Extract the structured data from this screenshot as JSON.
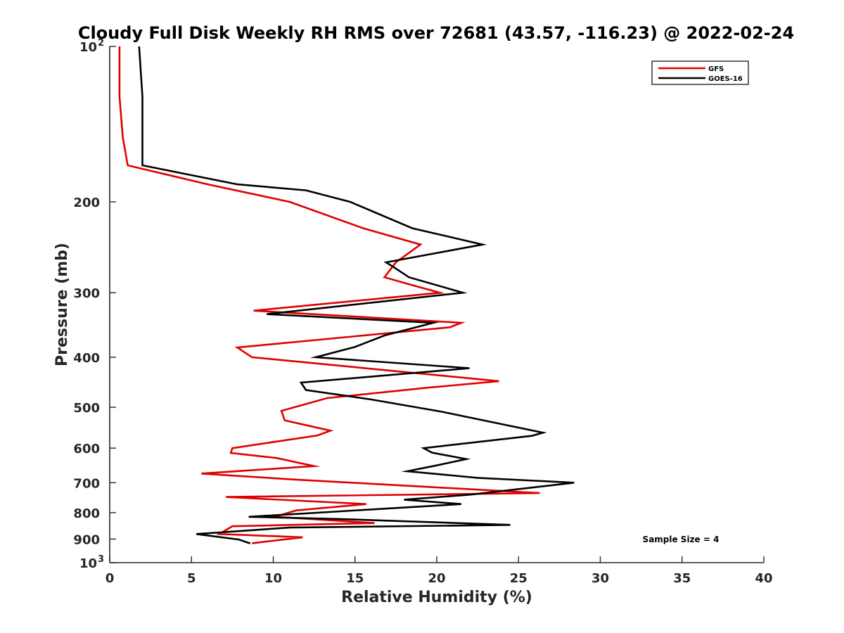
{
  "chart_data": {
    "type": "line",
    "title": "Cloudy Full Disk Weekly RH RMS over 72681 (43.57, -116.23) @ 2022-02-24",
    "xlabel": "Relative Humidity (%)",
    "ylabel": "Pressure (mb)",
    "xlim": [
      0,
      40
    ],
    "ylim": [
      100,
      1000
    ],
    "y_scale": "log",
    "y_reversed": true,
    "grid": false,
    "x_ticks": [
      {
        "value": 0,
        "label": "0"
      },
      {
        "value": 5,
        "label": "5"
      },
      {
        "value": 10,
        "label": "10"
      },
      {
        "value": 15,
        "label": "15"
      },
      {
        "value": 20,
        "label": "20"
      },
      {
        "value": 25,
        "label": "25"
      },
      {
        "value": 30,
        "label": "30"
      },
      {
        "value": 35,
        "label": "35"
      },
      {
        "value": 40,
        "label": "40"
      }
    ],
    "y_ticks": [
      {
        "value": 100,
        "label": "10",
        "sup": "2"
      },
      {
        "value": 200,
        "label": "200",
        "sup": ""
      },
      {
        "value": 300,
        "label": "300",
        "sup": ""
      },
      {
        "value": 400,
        "label": "400",
        "sup": ""
      },
      {
        "value": 500,
        "label": "500",
        "sup": ""
      },
      {
        "value": 600,
        "label": "600",
        "sup": ""
      },
      {
        "value": 700,
        "label": "700",
        "sup": ""
      },
      {
        "value": 800,
        "label": "800",
        "sup": ""
      },
      {
        "value": 900,
        "label": "900",
        "sup": ""
      },
      {
        "value": 1000,
        "label": "10",
        "sup": "3"
      }
    ],
    "legend_position": "top-right",
    "annotation": "Sample Size = 4",
    "series": [
      {
        "name": "GFS",
        "color": "#e00000",
        "points": [
          [
            0.6,
            100
          ],
          [
            0.6,
            125
          ],
          [
            0.8,
            150
          ],
          [
            1.1,
            170
          ],
          [
            6.0,
            185
          ],
          [
            11.0,
            200
          ],
          [
            15.5,
            225
          ],
          [
            19.0,
            242
          ],
          [
            17.5,
            262
          ],
          [
            16.8,
            280
          ],
          [
            18.5,
            290
          ],
          [
            20.2,
            300
          ],
          [
            8.8,
            325
          ],
          [
            21.5,
            343
          ],
          [
            20.8,
            350
          ],
          [
            7.8,
            383
          ],
          [
            8.7,
            400
          ],
          [
            23.8,
            445
          ],
          [
            19.5,
            458
          ],
          [
            13.3,
            480
          ],
          [
            10.5,
            508
          ],
          [
            10.7,
            530
          ],
          [
            13.5,
            555
          ],
          [
            12.7,
            567
          ],
          [
            7.5,
            600
          ],
          [
            7.4,
            613
          ],
          [
            10.2,
            627
          ],
          [
            12.5,
            650
          ],
          [
            5.6,
            672
          ],
          [
            11.2,
            690
          ],
          [
            26.3,
            733
          ],
          [
            7.1,
            746
          ],
          [
            15.7,
            770
          ],
          [
            11.4,
            792
          ],
          [
            10.1,
            815
          ],
          [
            16.2,
            838
          ],
          [
            7.5,
            850
          ],
          [
            6.7,
            880
          ],
          [
            11.8,
            893
          ],
          [
            8.7,
            917
          ]
        ]
      },
      {
        "name": "GOES-16",
        "color": "#000000",
        "points": [
          [
            1.8,
            100
          ],
          [
            2.0,
            125
          ],
          [
            2.0,
            150
          ],
          [
            2.0,
            170
          ],
          [
            7.8,
            185
          ],
          [
            12.0,
            190
          ],
          [
            14.7,
            200
          ],
          [
            18.5,
            225
          ],
          [
            22.8,
            242
          ],
          [
            16.9,
            262
          ],
          [
            17.4,
            268
          ],
          [
            18.3,
            280
          ],
          [
            21.6,
            300
          ],
          [
            9.6,
            330
          ],
          [
            19.8,
            343
          ],
          [
            16.8,
            363
          ],
          [
            15.0,
            382
          ],
          [
            12.6,
            400
          ],
          [
            22.0,
            420
          ],
          [
            11.7,
            448
          ],
          [
            12.0,
            463
          ],
          [
            16.0,
            483
          ],
          [
            20.3,
            510
          ],
          [
            26.5,
            560
          ],
          [
            25.8,
            568
          ],
          [
            19.2,
            600
          ],
          [
            19.7,
            612
          ],
          [
            21.8,
            630
          ],
          [
            20.0,
            648
          ],
          [
            18.2,
            665
          ],
          [
            22.5,
            685
          ],
          [
            28.4,
            700
          ],
          [
            22.1,
            738
          ],
          [
            18.0,
            755
          ],
          [
            21.5,
            770
          ],
          [
            8.5,
            815
          ],
          [
            14.0,
            823
          ],
          [
            24.5,
            845
          ],
          [
            11.0,
            855
          ],
          [
            5.3,
            880
          ],
          [
            7.9,
            902
          ],
          [
            8.6,
            918
          ]
        ]
      }
    ]
  }
}
